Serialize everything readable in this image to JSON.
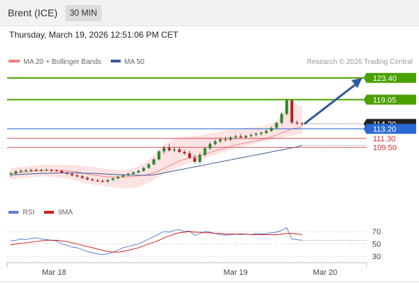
{
  "header": {
    "instrument": "Brent (ICE)",
    "timeframe": "30 MIN"
  },
  "datetime": "Thursday, March 19, 2026 12:51:06 PM CET",
  "credit": "Research © 2026 Trading Central",
  "colors": {
    "bollinger": "#f08080",
    "band_fill": "#fde0e0",
    "ma50": "#3a5a9a",
    "level_green": "#4aa000",
    "support_red": "#d03030",
    "current_blue": "#2a6ad4",
    "rsi": "#5b7fd6",
    "rsi_ma": "#d02020",
    "arrow": "#2f5aa0"
  },
  "chart_data": [
    {
      "type": "candlestick",
      "legend": [
        {
          "label": "MA 20 + Bollinger Bands",
          "color": "#f08080"
        },
        {
          "label": "MA 50",
          "color": "#3a5a9a"
        }
      ],
      "x_ticks": [
        "Mar 18",
        "Mar 19",
        "Mar 20"
      ],
      "ylim": [
        98.5,
        125.5
      ],
      "levels": [
        {
          "label": "123.40",
          "value": 123.4,
          "kind": "resistance"
        },
        {
          "label": "119.05",
          "value": 119.05,
          "kind": "resistance"
        },
        {
          "label": "114.20",
          "value": 114.2,
          "kind": "current_price"
        },
        {
          "label": "113.20",
          "value": 113.2,
          "kind": "pivot"
        },
        {
          "label": "111.30",
          "value": 111.3,
          "kind": "support"
        },
        {
          "label": "109.50",
          "value": 109.5,
          "kind": "support"
        }
      ],
      "candles": [
        [
          104.2,
          104.6,
          103.6,
          104.3
        ],
        [
          104.3,
          104.9,
          104.0,
          104.7
        ],
        [
          104.7,
          105.1,
          104.4,
          104.8
        ],
        [
          104.8,
          105.2,
          104.5,
          104.9
        ],
        [
          104.9,
          105.2,
          104.6,
          105.0
        ],
        [
          105.0,
          105.3,
          104.7,
          104.9
        ],
        [
          104.9,
          105.2,
          104.6,
          105.0
        ],
        [
          105.0,
          105.3,
          104.7,
          105.0
        ],
        [
          105.0,
          105.2,
          104.6,
          104.9
        ],
        [
          104.9,
          105.1,
          104.6,
          104.8
        ],
        [
          104.8,
          105.0,
          104.3,
          104.4
        ],
        [
          104.4,
          104.7,
          104.0,
          104.2
        ],
        [
          104.2,
          104.5,
          103.7,
          103.9
        ],
        [
          103.9,
          104.2,
          103.5,
          103.7
        ],
        [
          103.7,
          104.0,
          103.2,
          103.4
        ],
        [
          103.4,
          103.7,
          102.9,
          103.1
        ],
        [
          103.1,
          103.4,
          102.7,
          102.9
        ],
        [
          102.9,
          103.2,
          102.6,
          102.8
        ],
        [
          102.8,
          103.1,
          102.5,
          102.7
        ],
        [
          102.7,
          103.1,
          102.4,
          103.0
        ],
        [
          103.0,
          103.5,
          102.8,
          103.3
        ],
        [
          103.3,
          103.8,
          103.1,
          103.6
        ],
        [
          103.6,
          104.1,
          103.4,
          103.9
        ],
        [
          103.9,
          104.4,
          103.7,
          104.2
        ],
        [
          104.2,
          104.7,
          104.0,
          104.5
        ],
        [
          104.5,
          105.0,
          104.3,
          104.8
        ],
        [
          104.8,
          105.6,
          104.6,
          105.4
        ],
        [
          105.4,
          106.3,
          105.2,
          106.1
        ],
        [
          106.1,
          107.3,
          105.9,
          107.1
        ],
        [
          107.1,
          108.9,
          106.9,
          108.7
        ],
        [
          108.7,
          109.8,
          108.2,
          109.4
        ],
        [
          109.4,
          110.2,
          108.7,
          108.9
        ],
        [
          108.9,
          109.6,
          108.5,
          109.1
        ],
        [
          109.1,
          109.5,
          108.4,
          108.6
        ],
        [
          108.6,
          109.0,
          108.0,
          108.3
        ],
        [
          108.3,
          108.8,
          107.2,
          107.4
        ],
        [
          107.4,
          108.0,
          106.3,
          106.6
        ],
        [
          106.6,
          108.4,
          106.2,
          108.0
        ],
        [
          108.0,
          109.6,
          107.7,
          109.3
        ],
        [
          109.3,
          110.5,
          109.0,
          110.2
        ],
        [
          110.2,
          111.1,
          109.9,
          110.7
        ],
        [
          110.7,
          111.5,
          110.4,
          111.1
        ],
        [
          111.1,
          111.6,
          110.7,
          111.0
        ],
        [
          111.0,
          111.8,
          110.8,
          111.5
        ],
        [
          111.5,
          112.1,
          111.2,
          111.7
        ],
        [
          111.7,
          112.2,
          111.3,
          111.5
        ],
        [
          111.5,
          112.0,
          111.2,
          111.8
        ],
        [
          111.8,
          112.3,
          111.5,
          112.0
        ],
        [
          112.0,
          112.5,
          111.7,
          112.2
        ],
        [
          112.2,
          112.7,
          111.9,
          112.4
        ],
        [
          112.4,
          113.0,
          112.2,
          112.8
        ],
        [
          112.8,
          113.6,
          112.6,
          113.4
        ],
        [
          113.4,
          114.6,
          113.2,
          114.4
        ],
        [
          114.4,
          116.5,
          114.1,
          116.2
        ],
        [
          116.2,
          119.2,
          115.9,
          118.9
        ],
        [
          118.9,
          119.1,
          114.1,
          114.5
        ],
        [
          114.5,
          114.9,
          114.0,
          114.3
        ],
        [
          114.3,
          114.6,
          113.8,
          114.2
        ]
      ],
      "ma20": [
        104.2,
        104.4,
        104.5,
        104.6,
        104.7,
        104.8,
        104.8,
        104.9,
        104.9,
        104.9,
        104.9,
        104.8,
        104.7,
        104.6,
        104.4,
        104.2,
        104.0,
        103.9,
        103.7,
        103.6,
        103.6,
        103.6,
        103.6,
        103.6,
        103.7,
        103.8,
        103.9,
        104.1,
        104.4,
        104.8,
        105.3,
        105.8,
        106.3,
        106.8,
        107.1,
        107.4,
        107.6,
        107.9,
        108.2,
        108.5,
        108.8,
        109.1,
        109.4,
        109.7,
        110.0,
        110.2,
        110.4,
        110.6,
        110.8,
        111.0,
        111.3,
        111.6,
        112.0,
        112.4,
        112.8,
        113.2,
        113.4,
        113.6
      ],
      "bb_upper": [
        105.3,
        105.5,
        105.6,
        105.7,
        105.8,
        105.9,
        106.0,
        106.0,
        106.0,
        106.0,
        106.0,
        106.0,
        106.0,
        105.9,
        105.8,
        105.7,
        105.6,
        105.5,
        105.3,
        105.2,
        105.1,
        105.0,
        105.0,
        105.1,
        105.3,
        105.7,
        106.3,
        107.0,
        107.9,
        108.9,
        110.0,
        110.7,
        111.2,
        111.5,
        111.6,
        111.7,
        111.8,
        111.9,
        112.1,
        112.3,
        112.5,
        112.7,
        112.9,
        113.1,
        113.2,
        113.3,
        113.4,
        113.5,
        113.6,
        113.7,
        113.9,
        114.3,
        115.0,
        116.2,
        118.0,
        118.4,
        118.1,
        117.6
      ],
      "bb_lower": [
        103.1,
        103.2,
        103.3,
        103.4,
        103.5,
        103.6,
        103.7,
        103.7,
        103.6,
        103.5,
        103.4,
        103.2,
        103.0,
        102.8,
        102.5,
        102.3,
        102.1,
        101.9,
        101.8,
        101.6,
        101.5,
        101.4,
        101.3,
        101.3,
        101.4,
        101.6,
        101.9,
        102.4,
        103.0,
        103.6,
        104.2,
        104.7,
        105.2,
        105.6,
        106.0,
        106.3,
        106.7,
        107.0,
        107.3,
        107.7,
        108.0,
        108.4,
        108.7,
        109.0,
        109.3,
        109.6,
        109.8,
        110.1,
        110.3,
        110.6,
        110.8,
        111.0,
        111.2,
        111.4,
        111.6,
        111.8,
        112.0,
        112.2
      ],
      "ma50": [
        104.0,
        104.05,
        104.1,
        104.15,
        104.2,
        104.25,
        104.3,
        104.3,
        104.35,
        104.35,
        104.4,
        104.4,
        104.4,
        104.4,
        104.35,
        104.3,
        104.3,
        104.25,
        104.2,
        104.15,
        104.1,
        104.05,
        104.0,
        104.0,
        103.95,
        103.9,
        103.9,
        103.95,
        104.0,
        104.2,
        104.4,
        104.6,
        104.8,
        105.0,
        105.2,
        105.4,
        105.6,
        105.8,
        106.0,
        106.2,
        106.4,
        106.6,
        106.8,
        107.0,
        107.2,
        107.4,
        107.6,
        107.8,
        108.0,
        108.2,
        108.4,
        108.6,
        108.8,
        109.0,
        109.2,
        109.4,
        109.6,
        109.9
      ],
      "projection": {
        "from": 114.2,
        "to": 123.4
      }
    },
    {
      "type": "line",
      "legend": [
        {
          "label": "RSI",
          "color": "#5b7fd6"
        },
        {
          "label": "9MA",
          "color": "#d02020"
        }
      ],
      "ylim": [
        20,
        85
      ],
      "y_ticks": [
        "70",
        "50",
        "30"
      ],
      "y_tick_values": [
        70,
        50,
        30
      ],
      "rsi": [
        55,
        56,
        58,
        57,
        59,
        60,
        58,
        57,
        56,
        55,
        50,
        48,
        45,
        44,
        41,
        38,
        36,
        34,
        33,
        34,
        37,
        40,
        44,
        46,
        48,
        50,
        54,
        58,
        62,
        66,
        70,
        69,
        72,
        73,
        70,
        71,
        64,
        67,
        70,
        69,
        67,
        65,
        64,
        65,
        66,
        65,
        66,
        65,
        67,
        66,
        67,
        68,
        69,
        72,
        76,
        58,
        57,
        56
      ],
      "rsi_ma": [
        49,
        50,
        51,
        52,
        53,
        54,
        55,
        56,
        56,
        56,
        55,
        54,
        52,
        50,
        48,
        46,
        44,
        42,
        40,
        38,
        37,
        37,
        38,
        40,
        42,
        44,
        47,
        50,
        53,
        56,
        60,
        63,
        66,
        68,
        69,
        70,
        69,
        69,
        68,
        68,
        67,
        67,
        66,
        66,
        66,
        66,
        66,
        65,
        65,
        65,
        65,
        65,
        65,
        66,
        67,
        67,
        66,
        65
      ]
    }
  ]
}
